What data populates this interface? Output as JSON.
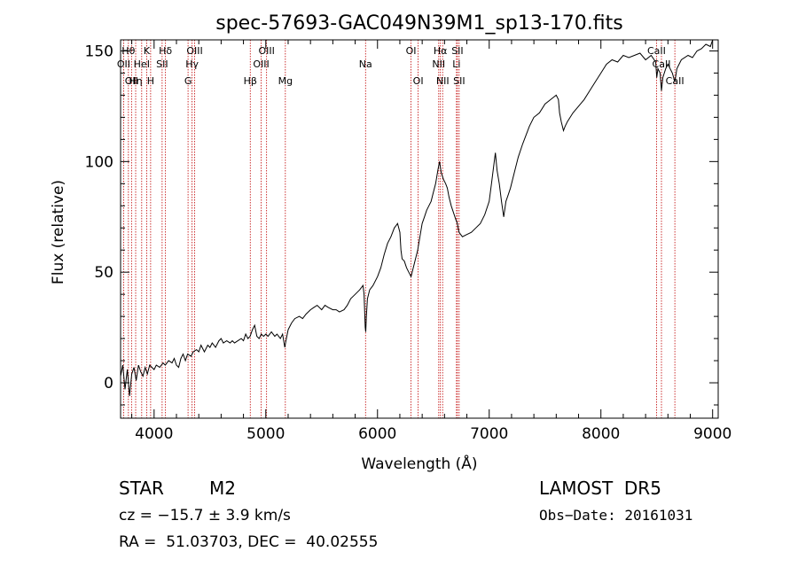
{
  "chart_data": {
    "type": "line",
    "title": "spec-57693-GAC049N39M1_sp13-170.fits",
    "xlabel": "Wavelength (Å)",
    "ylabel": "Flux (relative)",
    "xlim": [
      3700,
      9050
    ],
    "ylim": [
      -16,
      155
    ],
    "xticks": [
      4000,
      5000,
      6000,
      7000,
      8000,
      9000
    ],
    "yticks": [
      0,
      50,
      100,
      150
    ],
    "series": [
      {
        "color": "#000000",
        "points": [
          [
            3700,
            3
          ],
          [
            3720,
            8
          ],
          [
            3740,
            -3
          ],
          [
            3760,
            6
          ],
          [
            3780,
            -6
          ],
          [
            3800,
            4
          ],
          [
            3820,
            7
          ],
          [
            3840,
            1
          ],
          [
            3860,
            8
          ],
          [
            3880,
            5
          ],
          [
            3900,
            3
          ],
          [
            3920,
            7
          ],
          [
            3940,
            4
          ],
          [
            3960,
            8
          ],
          [
            3980,
            7
          ],
          [
            4000,
            6
          ],
          [
            4020,
            8
          ],
          [
            4050,
            7
          ],
          [
            4080,
            9
          ],
          [
            4100,
            8
          ],
          [
            4130,
            10
          ],
          [
            4160,
            9
          ],
          [
            4180,
            11
          ],
          [
            4200,
            8
          ],
          [
            4220,
            7
          ],
          [
            4240,
            11
          ],
          [
            4260,
            13
          ],
          [
            4280,
            10
          ],
          [
            4300,
            13
          ],
          [
            4330,
            12
          ],
          [
            4350,
            14
          ],
          [
            4380,
            15
          ],
          [
            4400,
            14
          ],
          [
            4420,
            17
          ],
          [
            4450,
            14
          ],
          [
            4480,
            17
          ],
          [
            4500,
            16
          ],
          [
            4520,
            18
          ],
          [
            4550,
            16
          ],
          [
            4580,
            19
          ],
          [
            4600,
            20
          ],
          [
            4620,
            18
          ],
          [
            4650,
            19
          ],
          [
            4680,
            18
          ],
          [
            4700,
            19
          ],
          [
            4720,
            18
          ],
          [
            4750,
            19
          ],
          [
            4780,
            20
          ],
          [
            4800,
            19
          ],
          [
            4820,
            22
          ],
          [
            4840,
            20
          ],
          [
            4860,
            21
          ],
          [
            4880,
            24
          ],
          [
            4900,
            26
          ],
          [
            4920,
            21
          ],
          [
            4940,
            20
          ],
          [
            4960,
            22
          ],
          [
            4980,
            21
          ],
          [
            5000,
            22
          ],
          [
            5020,
            21
          ],
          [
            5050,
            23
          ],
          [
            5080,
            21
          ],
          [
            5100,
            22
          ],
          [
            5130,
            20
          ],
          [
            5150,
            22
          ],
          [
            5170,
            16
          ],
          [
            5180,
            19
          ],
          [
            5200,
            24
          ],
          [
            5230,
            27
          ],
          [
            5260,
            29
          ],
          [
            5300,
            30
          ],
          [
            5330,
            29
          ],
          [
            5360,
            31
          ],
          [
            5400,
            33
          ],
          [
            5430,
            34
          ],
          [
            5460,
            35
          ],
          [
            5500,
            33
          ],
          [
            5530,
            35
          ],
          [
            5560,
            34
          ],
          [
            5600,
            33
          ],
          [
            5630,
            33
          ],
          [
            5660,
            32
          ],
          [
            5700,
            33
          ],
          [
            5730,
            35
          ],
          [
            5760,
            38
          ],
          [
            5800,
            40
          ],
          [
            5840,
            42
          ],
          [
            5870,
            44
          ],
          [
            5880,
            40
          ],
          [
            5890,
            25
          ],
          [
            5895,
            23
          ],
          [
            5900,
            30
          ],
          [
            5910,
            38
          ],
          [
            5930,
            42
          ],
          [
            5960,
            44
          ],
          [
            6000,
            48
          ],
          [
            6030,
            52
          ],
          [
            6060,
            58
          ],
          [
            6090,
            63
          ],
          [
            6120,
            66
          ],
          [
            6150,
            70
          ],
          [
            6180,
            72
          ],
          [
            6200,
            68
          ],
          [
            6210,
            60
          ],
          [
            6220,
            56
          ],
          [
            6240,
            55
          ],
          [
            6260,
            52
          ],
          [
            6280,
            50
          ],
          [
            6300,
            48
          ],
          [
            6320,
            52
          ],
          [
            6340,
            56
          ],
          [
            6360,
            60
          ],
          [
            6380,
            66
          ],
          [
            6400,
            72
          ],
          [
            6420,
            75
          ],
          [
            6440,
            78
          ],
          [
            6460,
            80
          ],
          [
            6480,
            82
          ],
          [
            6500,
            86
          ],
          [
            6520,
            90
          ],
          [
            6540,
            96
          ],
          [
            6555,
            100
          ],
          [
            6570,
            95
          ],
          [
            6590,
            92
          ],
          [
            6610,
            90
          ],
          [
            6625,
            88
          ],
          [
            6640,
            84
          ],
          [
            6660,
            80
          ],
          [
            6680,
            77
          ],
          [
            6700,
            74
          ],
          [
            6715,
            72
          ],
          [
            6730,
            68
          ],
          [
            6760,
            66
          ],
          [
            6800,
            67
          ],
          [
            6840,
            68
          ],
          [
            6880,
            70
          ],
          [
            6920,
            72
          ],
          [
            6960,
            76
          ],
          [
            7000,
            82
          ],
          [
            7020,
            90
          ],
          [
            7040,
            98
          ],
          [
            7055,
            104
          ],
          [
            7070,
            96
          ],
          [
            7090,
            90
          ],
          [
            7110,
            82
          ],
          [
            7130,
            75
          ],
          [
            7150,
            82
          ],
          [
            7170,
            85
          ],
          [
            7190,
            88
          ],
          [
            7210,
            92
          ],
          [
            7230,
            96
          ],
          [
            7260,
            102
          ],
          [
            7300,
            108
          ],
          [
            7330,
            112
          ],
          [
            7360,
            116
          ],
          [
            7400,
            120
          ],
          [
            7450,
            122
          ],
          [
            7500,
            126
          ],
          [
            7550,
            128
          ],
          [
            7600,
            130
          ],
          [
            7620,
            128
          ],
          [
            7630,
            122
          ],
          [
            7645,
            118
          ],
          [
            7665,
            114
          ],
          [
            7680,
            116
          ],
          [
            7700,
            118
          ],
          [
            7750,
            122
          ],
          [
            7800,
            125
          ],
          [
            7850,
            128
          ],
          [
            7900,
            132
          ],
          [
            7950,
            136
          ],
          [
            8000,
            140
          ],
          [
            8050,
            144
          ],
          [
            8100,
            146
          ],
          [
            8150,
            145
          ],
          [
            8200,
            148
          ],
          [
            8250,
            147
          ],
          [
            8300,
            148
          ],
          [
            8350,
            149
          ],
          [
            8400,
            146
          ],
          [
            8450,
            148
          ],
          [
            8490,
            145
          ],
          [
            8500,
            138
          ],
          [
            8510,
            142
          ],
          [
            8530,
            140
          ],
          [
            8542,
            132
          ],
          [
            8555,
            138
          ],
          [
            8580,
            142
          ],
          [
            8600,
            144
          ],
          [
            8640,
            140
          ],
          [
            8662,
            136
          ],
          [
            8680,
            142
          ],
          [
            8720,
            146
          ],
          [
            8780,
            148
          ],
          [
            8820,
            147
          ],
          [
            8860,
            150
          ],
          [
            8900,
            151
          ],
          [
            8940,
            153
          ],
          [
            8980,
            152
          ],
          [
            9000,
            155
          ],
          [
            9030,
            160
          ]
        ]
      }
    ],
    "lines": [
      {
        "x": 3727,
        "label": "OII",
        "row": 2
      },
      {
        "x": 3770,
        "label": "Hθ",
        "row": 1
      },
      {
        "x": 3798,
        "label": "OII",
        "row": 3
      },
      {
        "x": 3835,
        "label": "Hη",
        "row": 3
      },
      {
        "x": 3889,
        "label": "HeI",
        "row": 2
      },
      {
        "x": 3934,
        "label": "K",
        "row": 1
      },
      {
        "x": 3969,
        "label": "H",
        "row": 3
      },
      {
        "x": 4072,
        "label": "SII",
        "row": 2
      },
      {
        "x": 4102,
        "label": "Hδ",
        "row": 1
      },
      {
        "x": 4304,
        "label": "G",
        "row": 3
      },
      {
        "x": 4340,
        "label": "Hγ",
        "row": 2
      },
      {
        "x": 4363,
        "label": "OIII",
        "row": 1
      },
      {
        "x": 4861,
        "label": "Hβ",
        "row": 3
      },
      {
        "x": 4959,
        "label": "OIII",
        "row": 2
      },
      {
        "x": 5007,
        "label": "OIII",
        "row": 1
      },
      {
        "x": 5175,
        "label": "Mg",
        "row": 3
      },
      {
        "x": 5893,
        "label": "Na",
        "row": 2
      },
      {
        "x": 6300,
        "label": "OI",
        "row": 1
      },
      {
        "x": 6364,
        "label": "OI",
        "row": 3
      },
      {
        "x": 6548,
        "label": "NII",
        "row": 2
      },
      {
        "x": 6563,
        "label": "Hα",
        "row": 1
      },
      {
        "x": 6583,
        "label": "NII",
        "row": 3
      },
      {
        "x": 6707,
        "label": "Li",
        "row": 2
      },
      {
        "x": 6716,
        "label": "SII",
        "row": 1
      },
      {
        "x": 6731,
        "label": "SII",
        "row": 3
      },
      {
        "x": 8498,
        "label": "CaII",
        "row": 1
      },
      {
        "x": 8542,
        "label": "CaII",
        "row": 2
      },
      {
        "x": 8662,
        "label": "CaII",
        "row": 3
      }
    ]
  },
  "info": {
    "object_class": "STAR",
    "subclass": "M2",
    "cz": "cz = −15.7 ± 3.9 km/s",
    "coords": "RA =  51.03703, DEC =  40.02555",
    "survey": "LAMOST  DR5",
    "obs_date": "Obs−Date: 20161031"
  },
  "colors": {
    "line_marker": "#c00000",
    "spectrum": "#000000",
    "axes": "#000000"
  }
}
